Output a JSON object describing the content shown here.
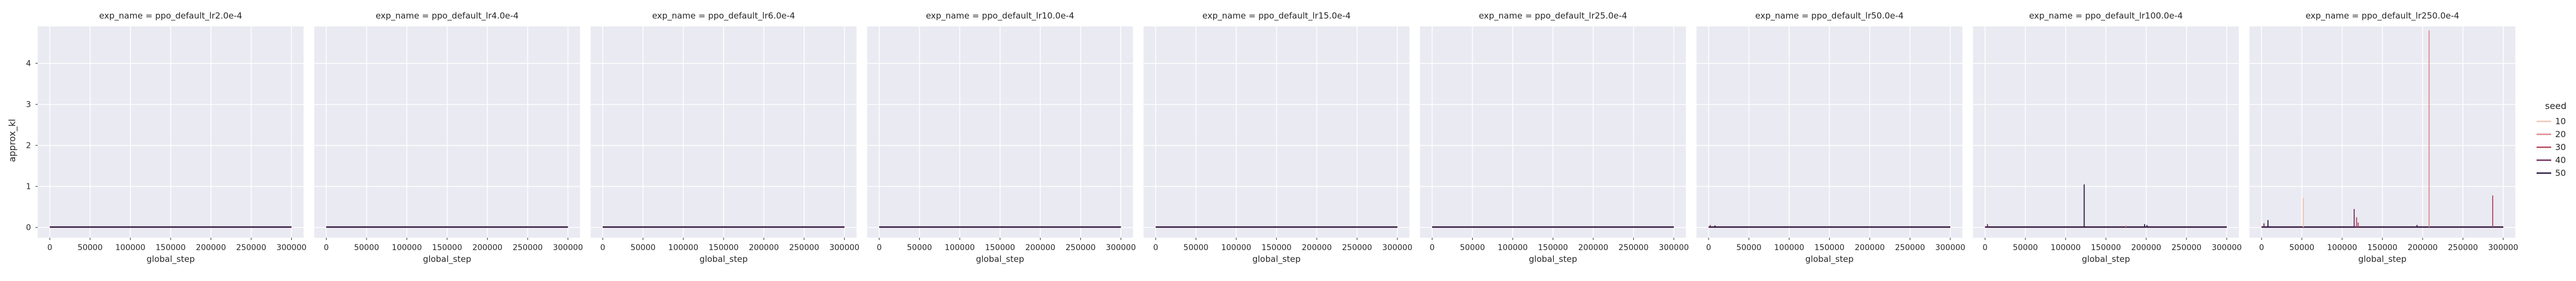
{
  "figure": {
    "ylabel": "approx_kl",
    "legend": {
      "title": "seed",
      "entries": [
        "10",
        "20",
        "30",
        "40",
        "50"
      ],
      "placement": "right"
    }
  },
  "chart_data": {
    "type": "line",
    "grid": true,
    "background": "#eaeaf2",
    "xlim": [
      -15000,
      315000
    ],
    "ylim": [
      -0.25,
      4.9
    ],
    "xticks": [
      0,
      50000,
      100000,
      150000,
      200000,
      250000,
      300000
    ],
    "xtick_labels": [
      "0",
      "50000",
      "100000",
      "150000",
      "200000",
      "250000",
      "300000"
    ],
    "yticks": [
      0,
      1,
      2,
      3,
      4
    ],
    "ytick_labels": [
      "0",
      "1",
      "2",
      "3",
      "4"
    ],
    "xlabel": "global_step",
    "ylabel": "approx_kl",
    "series_colors": {
      "10": "#f0c4b5",
      "20": "#dc8a8a",
      "30": "#b5475d",
      "40": "#742c5e",
      "50": "#2b1a40"
    },
    "panels": [
      {
        "title": "exp_name = ppo_default_lr2.0e-4",
        "spikes": []
      },
      {
        "title": "exp_name = ppo_default_lr4.0e-4",
        "spikes": []
      },
      {
        "title": "exp_name = ppo_default_lr6.0e-4",
        "spikes": []
      },
      {
        "title": "exp_name = ppo_default_lr10.0e-4",
        "spikes": []
      },
      {
        "title": "exp_name = ppo_default_lr15.0e-4",
        "spikes": []
      },
      {
        "title": "exp_name = ppo_default_lr25.0e-4",
        "spikes": []
      },
      {
        "title": "exp_name = ppo_default_lr50.0e-4",
        "spikes": [
          {
            "seed": "40",
            "x": 2000,
            "y": 0.06
          },
          {
            "seed": "50",
            "x": 8000,
            "y": 0.05
          }
        ]
      },
      {
        "title": "exp_name = ppo_default_lr100.0e-4",
        "spikes": [
          {
            "seed": "50",
            "x": 123000,
            "y": 1.05
          },
          {
            "seed": "40",
            "x": 3000,
            "y": 0.08
          },
          {
            "seed": "20",
            "x": 175000,
            "y": 0.05
          },
          {
            "seed": "50",
            "x": 198000,
            "y": 0.08
          },
          {
            "seed": "50",
            "x": 201000,
            "y": 0.06
          }
        ]
      },
      {
        "title": "exp_name = ppo_default_lr250.0e-4",
        "spikes": [
          {
            "seed": "20",
            "x": 208000,
            "y": 4.8
          },
          {
            "seed": "10",
            "x": 52000,
            "y": 0.72
          },
          {
            "seed": "30",
            "x": 287000,
            "y": 0.78
          },
          {
            "seed": "40",
            "x": 115000,
            "y": 0.45
          },
          {
            "seed": "30",
            "x": 118000,
            "y": 0.25
          },
          {
            "seed": "50",
            "x": 8000,
            "y": 0.18
          },
          {
            "seed": "40",
            "x": 3000,
            "y": 0.1
          },
          {
            "seed": "50",
            "x": 193000,
            "y": 0.06
          },
          {
            "seed": "30",
            "x": 120000,
            "y": 0.12
          }
        ]
      }
    ]
  }
}
